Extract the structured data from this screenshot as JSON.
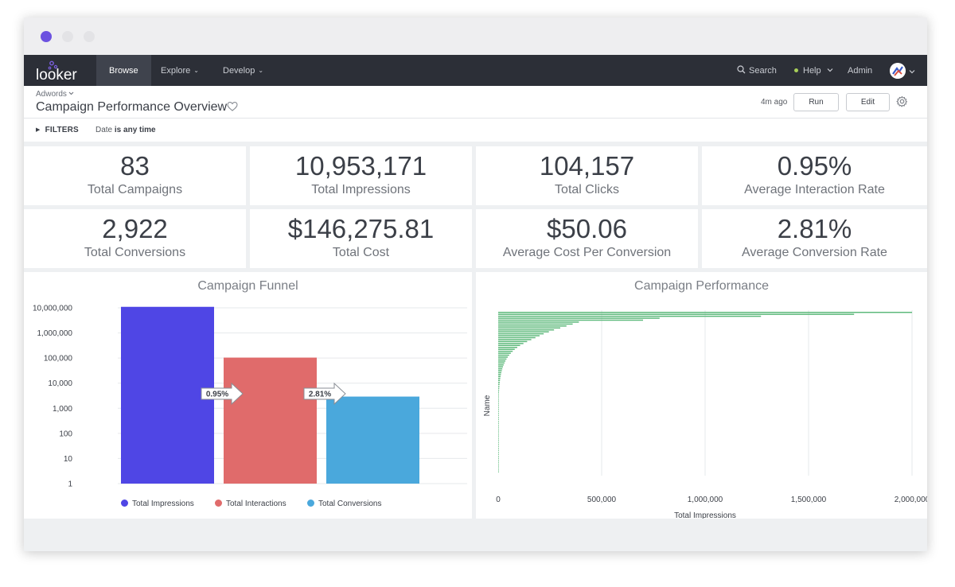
{
  "nav": {
    "logo": "looker",
    "items": [
      {
        "label": "Browse",
        "active": true
      },
      {
        "label": "Explore",
        "caret": "⌄"
      },
      {
        "label": "Develop",
        "caret": "⌄"
      }
    ],
    "search_label": "Search",
    "help_label": "Help",
    "admin_label": "Admin",
    "help_dot_color": "#a8cf59"
  },
  "header": {
    "breadcrumb": "Adwords",
    "title": "Campaign Performance Overview",
    "last_run": "4m ago",
    "run_label": "Run",
    "edit_label": "Edit"
  },
  "filters": {
    "toggle_label": "FILTERS",
    "field": "Date",
    "condition": "is any time"
  },
  "kpis": [
    {
      "value": "83",
      "label": "Total Campaigns"
    },
    {
      "value": "10,953,171",
      "label": "Total Impressions"
    },
    {
      "value": "104,157",
      "label": "Total Clicks"
    },
    {
      "value": "0.95%",
      "label": "Average Interaction Rate"
    },
    {
      "value": "2,922",
      "label": "Total Conversions"
    },
    {
      "value": "$146,275.81",
      "label": "Total Cost"
    },
    {
      "value": "$50.06",
      "label": "Average Cost Per Conversion"
    },
    {
      "value": "2.81%",
      "label": "Average Conversion Rate"
    }
  ],
  "chart_data": [
    {
      "type": "bar",
      "title": "Campaign Funnel",
      "scale": "log",
      "ylim": [
        1,
        10000000
      ],
      "y_ticks": [
        "1",
        "10",
        "100",
        "1,000",
        "10,000",
        "100,000",
        "1,000,000",
        "10,000,000"
      ],
      "series": [
        {
          "name": "Total Impressions",
          "value": 10953171,
          "color": "#4f46e5"
        },
        {
          "name": "Total Interactions",
          "value": 104157,
          "color": "#e06b6b"
        },
        {
          "name": "Total Conversions",
          "value": 2922,
          "color": "#4aa8dc"
        }
      ],
      "step_rates": [
        "0.95%",
        "2.81%"
      ],
      "grid": true,
      "legend": "bottom"
    },
    {
      "type": "bar",
      "orientation": "horizontal",
      "title": "Campaign Performance",
      "xlabel": "Total Impressions",
      "ylabel": "Name",
      "xlim": [
        0,
        2000000
      ],
      "x_ticks": [
        "0",
        "500,000",
        "1,000,000",
        "1,500,000",
        "2,000,000"
      ],
      "color": "#5cb87a",
      "grid": true,
      "values": [
        2000000,
        1720000,
        1270000,
        780000,
        700000,
        390000,
        360000,
        330000,
        300000,
        270000,
        245000,
        220000,
        200000,
        180000,
        160000,
        140000,
        122000,
        106000,
        92000,
        80000,
        70000,
        61000,
        53000,
        46000,
        40000,
        35000,
        30500,
        26500,
        23000,
        20000,
        17500,
        15200,
        13200,
        11500,
        10000,
        8700,
        7600,
        6600,
        5700,
        5000,
        4350,
        3780,
        3290,
        2860,
        2490,
        2170,
        1890,
        1640,
        1430,
        1240,
        1080,
        940,
        820,
        710,
        620,
        540,
        470,
        410,
        355,
        310,
        270,
        235,
        204,
        178,
        155,
        135,
        117,
        102,
        89,
        77,
        67,
        58,
        51,
        44,
        38,
        33,
        29,
        25,
        22,
        19,
        16,
        14,
        12
      ]
    }
  ]
}
